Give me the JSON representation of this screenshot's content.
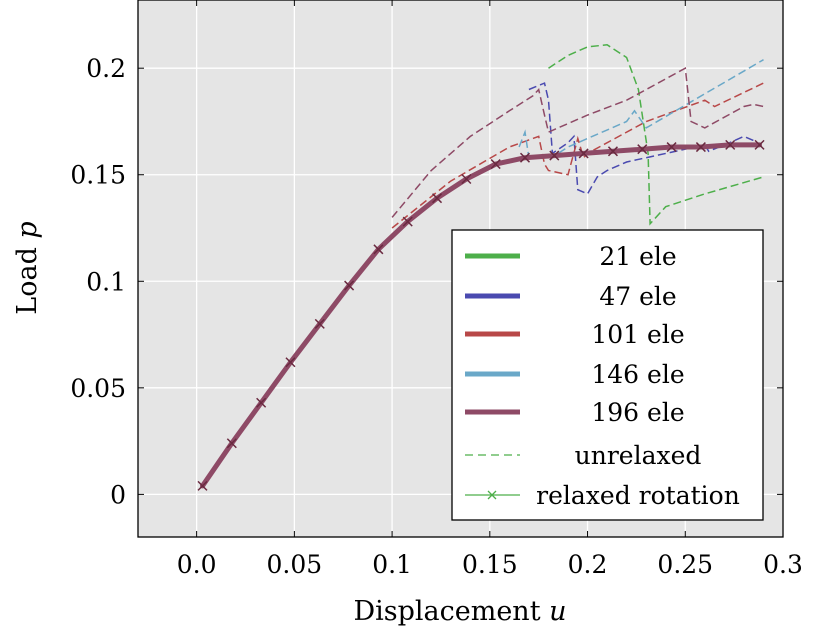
{
  "chart_data": {
    "type": "line",
    "xlabel": "Displacement u",
    "xlabel_text": "Displacement ",
    "xlabel_var": "u",
    "ylabel": "Load p",
    "ylabel_text": "Load ",
    "ylabel_var": "p",
    "xlim": [
      -0.03,
      0.3
    ],
    "ylim": [
      -0.02,
      0.232
    ],
    "xticks": [
      0.0,
      0.05,
      0.1,
      0.15,
      0.2,
      0.25,
      0.3
    ],
    "xtick_labels": [
      "0.0",
      "0.05",
      "0.1",
      "0.15",
      "0.2",
      "0.25",
      "0.3"
    ],
    "yticks": [
      0,
      0.05,
      0.1,
      0.15,
      0.2
    ],
    "ytick_labels": [
      "0",
      "0.05",
      "0.1",
      "0.15",
      "0.2"
    ],
    "grid": true,
    "background": "#e5e5e5",
    "legend_position": "bottom-right",
    "legend": [
      {
        "label": "21 ele",
        "color": "#4daf4a",
        "style": "thick-solid"
      },
      {
        "label": "47 ele",
        "color": "#4a4ab0",
        "style": "thick-solid"
      },
      {
        "label": "101 ele",
        "color": "#b84848",
        "style": "thick-solid"
      },
      {
        "label": "146 ele",
        "color": "#6aa8c8",
        "style": "thick-solid"
      },
      {
        "label": "196 ele",
        "color": "#8e4a66",
        "style": "thick-solid"
      },
      {
        "label": "unrelaxed",
        "color": "#4daf4a",
        "style": "dashed"
      },
      {
        "label": "relaxed rotation",
        "color": "#4daf4a",
        "style": "solid-x"
      }
    ],
    "series": [
      {
        "name": "unrelaxed",
        "mesh": "21 ele",
        "color": "#4daf4a",
        "style": "dashed",
        "x": [
          0.18,
          0.19,
          0.2,
          0.21,
          0.22,
          0.226,
          0.231,
          0.232,
          0.24,
          0.26,
          0.29
        ],
        "y": [
          0.2,
          0.206,
          0.21,
          0.211,
          0.205,
          0.19,
          0.16,
          0.127,
          0.135,
          0.141,
          0.149
        ]
      },
      {
        "name": "unrelaxed",
        "mesh": "47 ele",
        "color": "#4a4ab0",
        "style": "dashed",
        "x": [
          0.17,
          0.178,
          0.18,
          0.182,
          0.19,
          0.193,
          0.195,
          0.2,
          0.205,
          0.21,
          0.22,
          0.26,
          0.262,
          0.27,
          0.28,
          0.285,
          0.288
        ],
        "y": [
          0.19,
          0.193,
          0.185,
          0.16,
          0.165,
          0.168,
          0.143,
          0.141,
          0.149,
          0.152,
          0.156,
          0.164,
          0.161,
          0.164,
          0.168,
          0.166,
          0.163
        ]
      },
      {
        "name": "unrelaxed",
        "mesh": "101 ele",
        "color": "#b84848",
        "style": "dashed",
        "x": [
          0.1,
          0.13,
          0.16,
          0.175,
          0.178,
          0.18,
          0.19,
          0.195,
          0.198,
          0.2,
          0.23,
          0.26,
          0.265,
          0.29
        ],
        "y": [
          0.125,
          0.147,
          0.163,
          0.168,
          0.155,
          0.152,
          0.15,
          0.167,
          0.158,
          0.16,
          0.175,
          0.185,
          0.182,
          0.193
        ]
      },
      {
        "name": "unrelaxed",
        "mesh": "146 ele",
        "color": "#6aa8c8",
        "style": "dashed",
        "x": [
          0.165,
          0.168,
          0.17,
          0.185,
          0.19,
          0.22,
          0.224,
          0.23,
          0.26,
          0.29
        ],
        "y": [
          0.163,
          0.17,
          0.158,
          0.16,
          0.163,
          0.175,
          0.18,
          0.172,
          0.188,
          0.204
        ]
      },
      {
        "name": "unrelaxed",
        "mesh": "196 ele",
        "color": "#8e4a66",
        "style": "dashed",
        "x": [
          0.1,
          0.12,
          0.14,
          0.16,
          0.172,
          0.175,
          0.178,
          0.18,
          0.2,
          0.22,
          0.25,
          0.253,
          0.26,
          0.28,
          0.285,
          0.29
        ],
        "y": [
          0.13,
          0.152,
          0.168,
          0.18,
          0.187,
          0.19,
          0.178,
          0.17,
          0.178,
          0.185,
          0.2,
          0.175,
          0.172,
          0.182,
          0.183,
          0.182
        ]
      },
      {
        "name": "relaxed rotation",
        "mesh": "196 ele",
        "color": "#8e4a66",
        "style": "solid-x",
        "x": [
          0.003,
          0.018,
          0.033,
          0.048,
          0.063,
          0.078,
          0.093,
          0.108,
          0.123,
          0.138,
          0.153,
          0.168,
          0.183,
          0.198,
          0.213,
          0.228,
          0.243,
          0.258,
          0.273,
          0.288
        ],
        "y": [
          0.004,
          0.024,
          0.043,
          0.062,
          0.08,
          0.098,
          0.115,
          0.128,
          0.139,
          0.148,
          0.155,
          0.158,
          0.159,
          0.16,
          0.161,
          0.162,
          0.163,
          0.163,
          0.164,
          0.164
        ]
      }
    ]
  }
}
